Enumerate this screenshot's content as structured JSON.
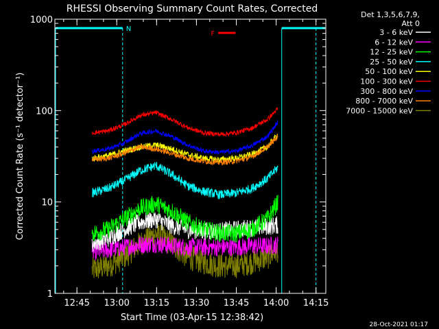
{
  "chart_data": {
    "type": "line",
    "title": "RHESSI Observing Summary Count Rates, Corrected",
    "xlabel": "Start Time (03-Apr-15 12:38:42)",
    "ylabel": "Corrected Count Rate (s⁻¹ detector⁻¹)",
    "y_scale": "log",
    "ylim": [
      1,
      1000
    ],
    "x_unit": "minutes after 12:38:42 on 03-Apr-15",
    "xlim": [
      -2,
      100
    ],
    "x_ticks": [
      {
        "t": 6.3,
        "label": "12:45"
      },
      {
        "t": 21.3,
        "label": "13:00"
      },
      {
        "t": 36.3,
        "label": "13:15"
      },
      {
        "t": 51.3,
        "label": "13:30"
      },
      {
        "t": 66.3,
        "label": "13:45"
      },
      {
        "t": 81.3,
        "label": "14:00"
      },
      {
        "t": 96.3,
        "label": "14:15"
      }
    ],
    "y_ticks": [
      {
        "v": 1,
        "label": "1"
      },
      {
        "v": 10,
        "label": "10"
      },
      {
        "v": 100,
        "label": "100"
      },
      {
        "v": 1000,
        "label": "1000"
      }
    ],
    "x_data": [
      12,
      18,
      24,
      30,
      36,
      42,
      48,
      54,
      60,
      66,
      72,
      78,
      82
    ],
    "legend": {
      "header_lines": [
        "Det 1,3,5,6,7,9,",
        "Att 0"
      ],
      "placement": "top-right outside plot"
    },
    "series": [
      {
        "name": "3 - 6 keV",
        "color": "#ffffff",
        "values": [
          3.5,
          4.0,
          5.0,
          6.0,
          6.5,
          5.5,
          5.0,
          4.8,
          4.8,
          5.0,
          5.2,
          5.4,
          5.6
        ]
      },
      {
        "name": "6 - 12 keV",
        "color": "#ff00ff",
        "values": [
          2.8,
          3.0,
          3.2,
          3.4,
          3.5,
          3.3,
          3.2,
          3.2,
          3.2,
          3.2,
          3.3,
          3.3,
          3.4
        ]
      },
      {
        "name": "12 - 25 keV",
        "color": "#00ff00",
        "values": [
          4.5,
          5.0,
          6.5,
          8.5,
          9.5,
          8.0,
          6.0,
          5.0,
          4.6,
          4.5,
          5.0,
          6.5,
          10.0
        ]
      },
      {
        "name": "25 - 50 keV",
        "color": "#00ffff",
        "values": [
          12.5,
          14,
          17,
          22,
          25,
          20,
          15,
          13,
          12,
          12.5,
          14,
          18,
          24
        ]
      },
      {
        "name": "50 - 100 keV",
        "color": "#ffff00",
        "values": [
          30,
          32,
          36,
          40,
          42,
          38,
          33,
          30,
          29,
          30,
          33,
          40,
          55
        ]
      },
      {
        "name": "100 - 300 keV",
        "color": "#ff0000",
        "values": [
          57,
          60,
          70,
          88,
          95,
          80,
          65,
          57,
          55,
          57,
          64,
          80,
          105
        ]
      },
      {
        "name": "300 - 800 keV",
        "color": "#0000ff",
        "values": [
          36,
          38,
          44,
          56,
          60,
          52,
          42,
          36,
          35,
          36,
          41,
          52,
          75
        ]
      },
      {
        "name": "800 - 7000 keV",
        "color": "#ff8000",
        "values": [
          29,
          30,
          34,
          40,
          38,
          34,
          30,
          28,
          27,
          28,
          31,
          40,
          52
        ]
      },
      {
        "name": "7000 - 15000 keV",
        "color": "#808000",
        "values": [
          1.8,
          2.0,
          2.5,
          3.5,
          4.5,
          3.5,
          2.5,
          2.2,
          2.0,
          2.0,
          2.2,
          2.5,
          3.0
        ]
      }
    ],
    "annotations": [
      {
        "label": "N",
        "color": "#00ffff",
        "type": "night interval"
      },
      {
        "label": "F",
        "color": "#ff0000",
        "type": "flag bar"
      }
    ],
    "footer": "28-Oct-2021 01:17"
  }
}
